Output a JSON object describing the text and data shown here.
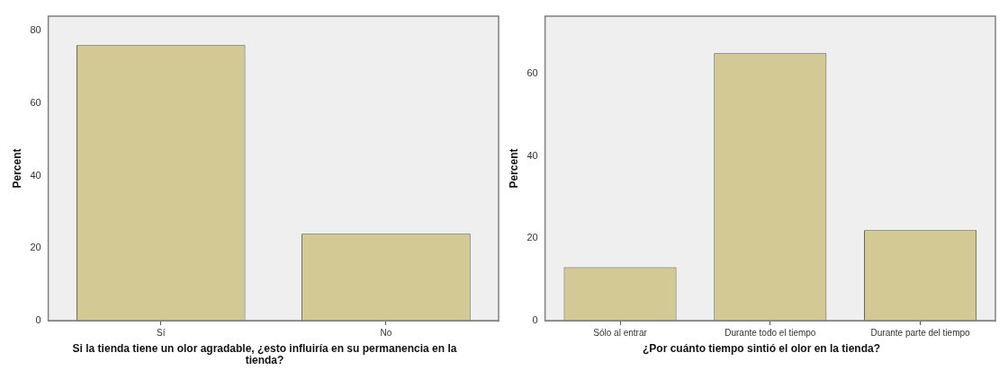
{
  "chart_data": [
    {
      "type": "bar",
      "xlabel": "Si la tienda tiene un olor agradable, ¿esto influiría en su permanencia en la tienda?",
      "ylabel": "Percent",
      "categories": [
        "Sí",
        "No"
      ],
      "values": [
        76,
        24
      ],
      "color": "#d3c995",
      "ylim": [
        0,
        84
      ],
      "yticks": [
        0,
        20,
        40,
        60,
        80
      ],
      "grid": false,
      "legend": false
    },
    {
      "type": "bar",
      "xlabel": "¿Por cuánto tiempo sintió el olor en la tienda?",
      "ylabel": "Percent",
      "categories": [
        "Sólo al entrar",
        "Durante todo el tiempo",
        "Durante parte del tiempo"
      ],
      "values": [
        13,
        65,
        22
      ],
      "color": "#d3c995",
      "ylim": [
        0,
        74
      ],
      "yticks": [
        0,
        20,
        40,
        60
      ],
      "grid": false,
      "legend": false
    }
  ]
}
